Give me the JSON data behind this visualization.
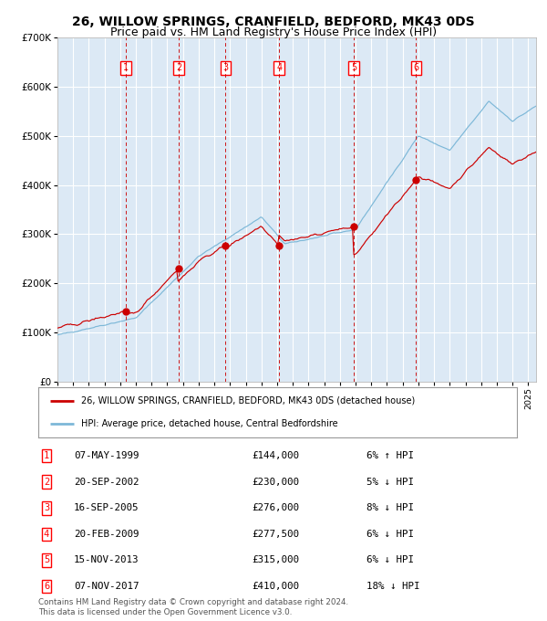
{
  "title": "26, WILLOW SPRINGS, CRANFIELD, BEDFORD, MK43 0DS",
  "subtitle": "Price paid vs. HM Land Registry's House Price Index (HPI)",
  "title_fontsize": 10,
  "subtitle_fontsize": 9,
  "ylim": [
    0,
    700000
  ],
  "xlim_start": 1995.0,
  "xlim_end": 2025.5,
  "yticks": [
    0,
    100000,
    200000,
    300000,
    400000,
    500000,
    600000,
    700000
  ],
  "ytick_labels": [
    "£0",
    "£100K",
    "£200K",
    "£300K",
    "£400K",
    "£500K",
    "£600K",
    "£700K"
  ],
  "background_color": "#ffffff",
  "plot_bg_color": "#dce9f5",
  "grid_color": "#ffffff",
  "purchase_color": "#cc0000",
  "hpi_color": "#7db8d8",
  "dashed_line_color": "#cc0000",
  "purchases": [
    {
      "num": 1,
      "year": 1999.35,
      "price": 144000
    },
    {
      "num": 2,
      "year": 2002.72,
      "price": 230000
    },
    {
      "num": 3,
      "year": 2005.71,
      "price": 276000
    },
    {
      "num": 4,
      "year": 2009.13,
      "price": 277500
    },
    {
      "num": 5,
      "year": 2013.88,
      "price": 315000
    },
    {
      "num": 6,
      "year": 2017.85,
      "price": 410000
    }
  ],
  "legend_line1": "26, WILLOW SPRINGS, CRANFIELD, BEDFORD, MK43 0DS (detached house)",
  "legend_line2": "HPI: Average price, detached house, Central Bedfordshire",
  "table_rows": [
    {
      "num": "1",
      "date": "07-MAY-1999",
      "price": "£144,000",
      "hpi": "6% ↑ HPI"
    },
    {
      "num": "2",
      "date": "20-SEP-2002",
      "price": "£230,000",
      "hpi": "5% ↓ HPI"
    },
    {
      "num": "3",
      "date": "16-SEP-2005",
      "price": "£276,000",
      "hpi": "8% ↓ HPI"
    },
    {
      "num": "4",
      "date": "20-FEB-2009",
      "price": "£277,500",
      "hpi": "6% ↓ HPI"
    },
    {
      "num": "5",
      "date": "15-NOV-2013",
      "price": "£315,000",
      "hpi": "6% ↓ HPI"
    },
    {
      "num": "6",
      "date": "07-NOV-2017",
      "price": "£410,000",
      "hpi": "18% ↓ HPI"
    }
  ],
  "footer": "Contains HM Land Registry data © Crown copyright and database right 2024.\nThis data is licensed under the Open Government Licence v3.0."
}
